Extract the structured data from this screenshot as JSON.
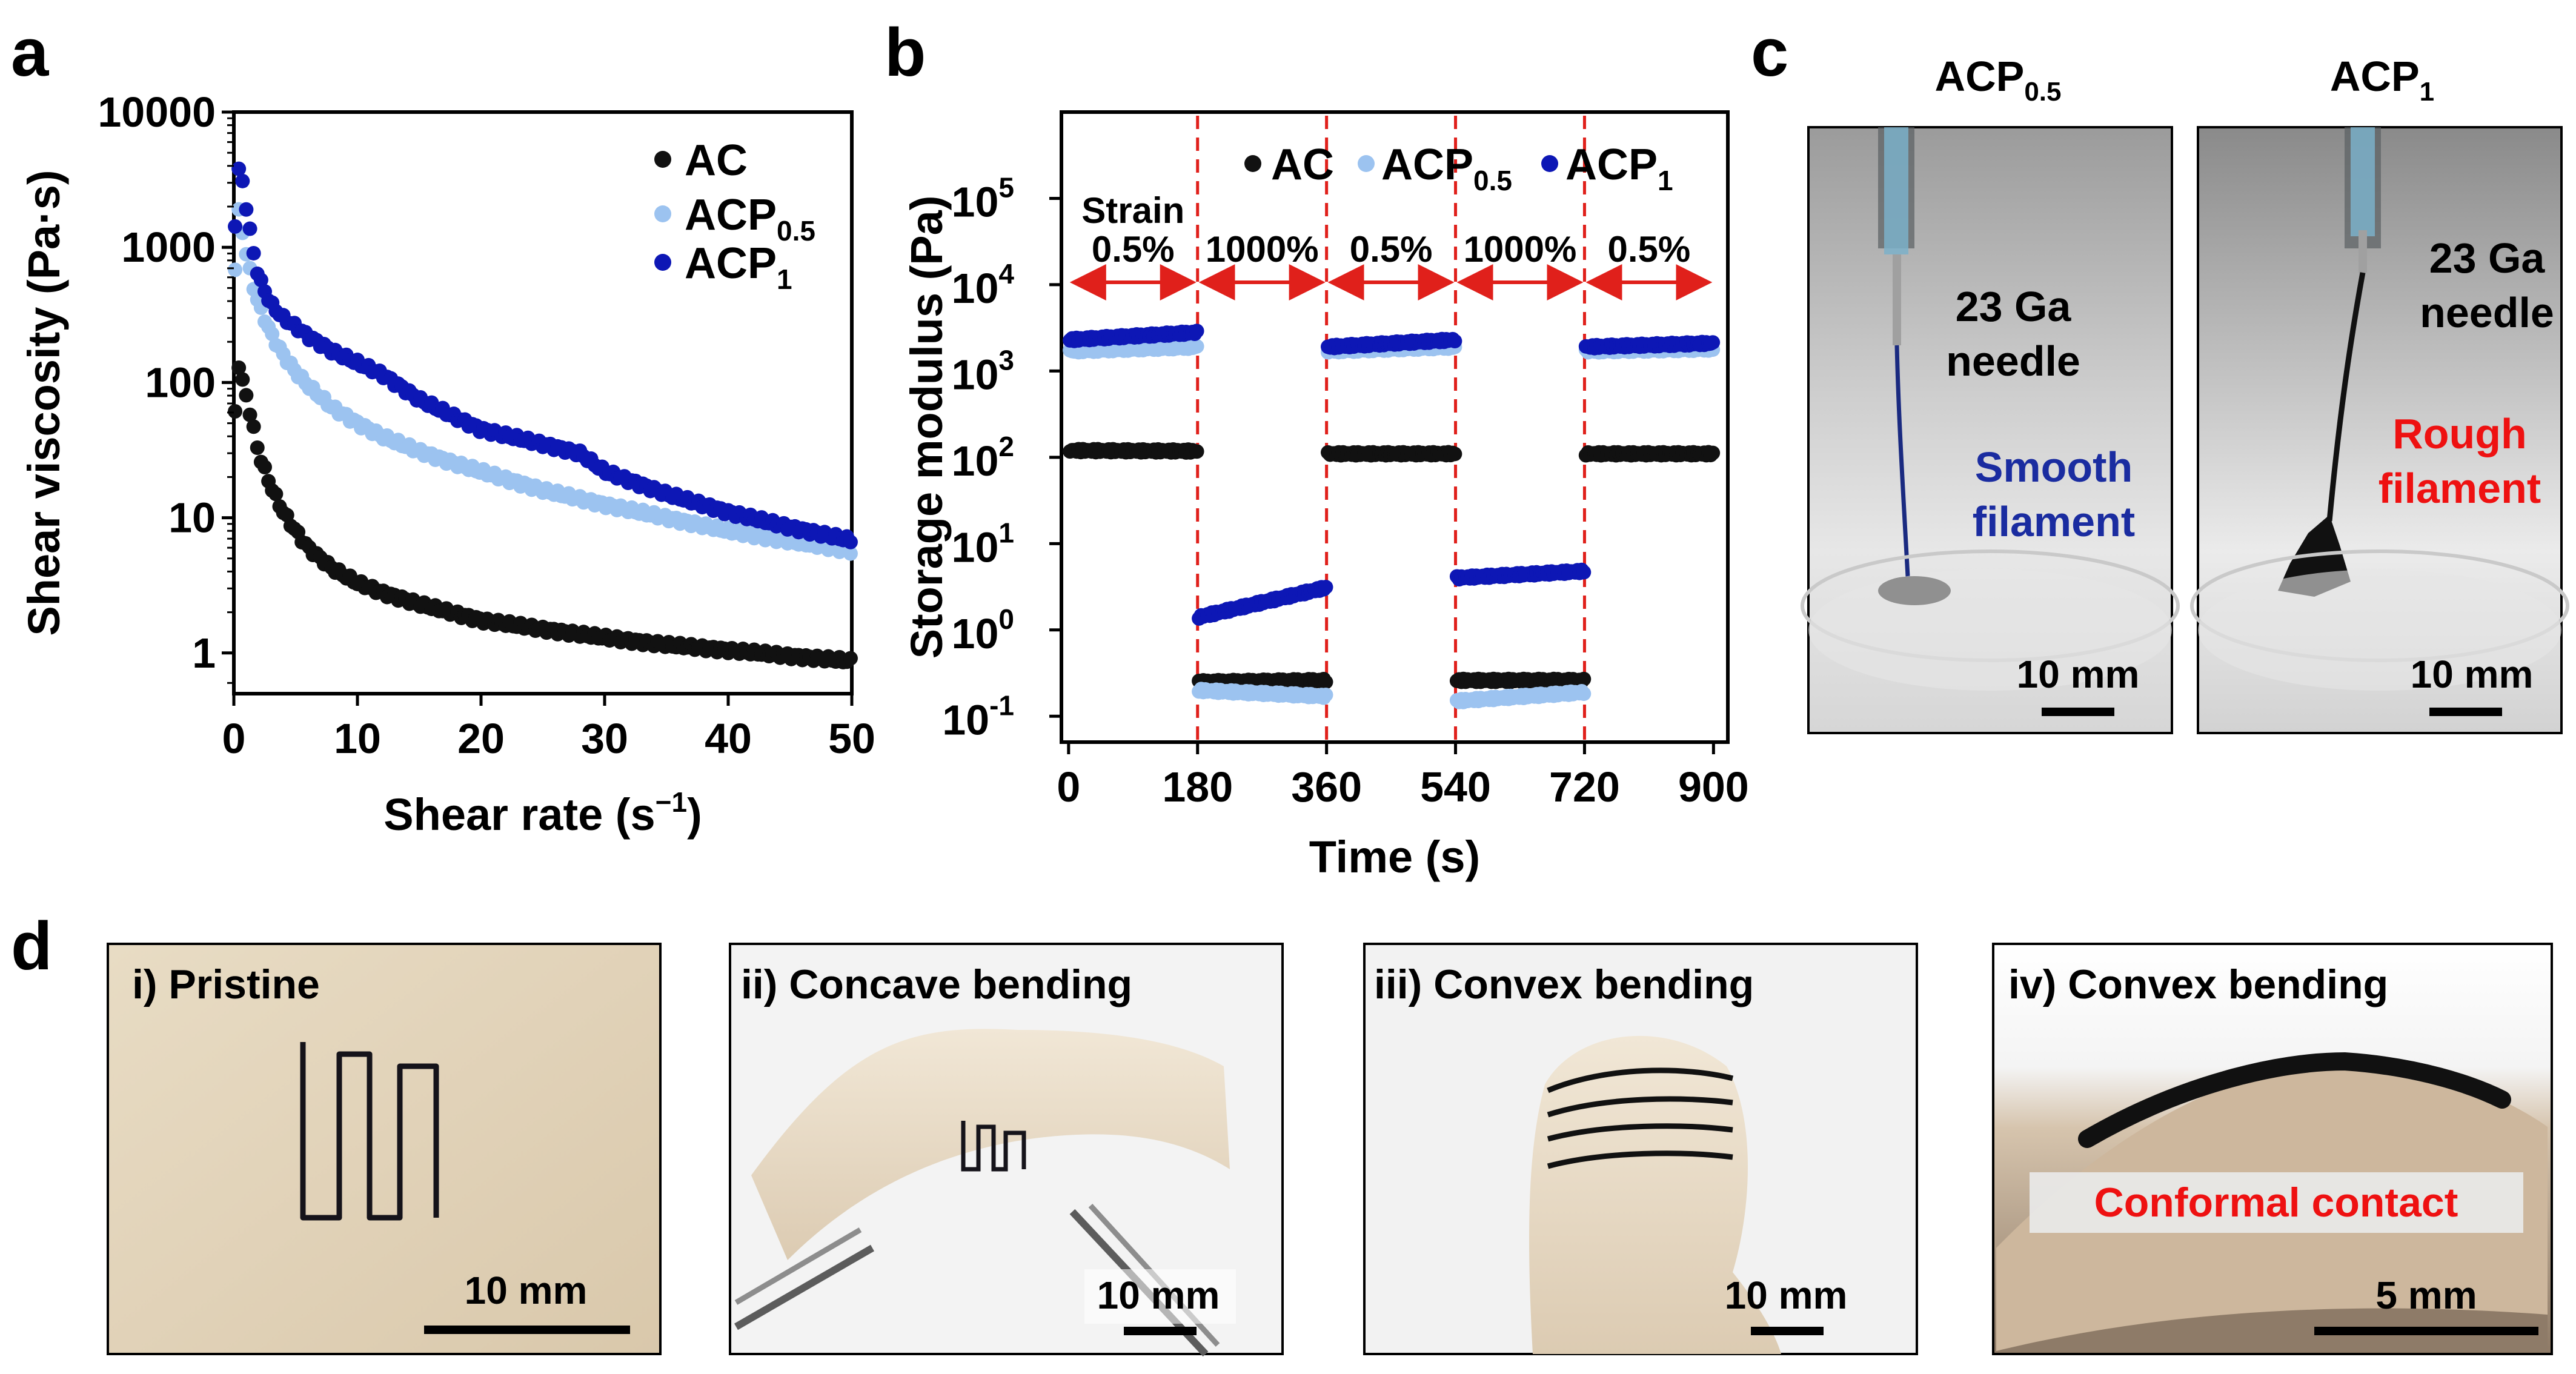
{
  "panel_labels": {
    "a": "a",
    "b": "b",
    "c": "c",
    "d": "d"
  },
  "colors": {
    "AC": "#111111",
    "ACP05": "#9cc3f0",
    "ACP1": "#0d17b5",
    "strain": "#e0201b",
    "red_text": "#ee1111",
    "blue_text": "#1a2ca0"
  },
  "chart_data": [
    {
      "id": "a",
      "type": "scatter",
      "xlabel": "Shear rate (s",
      "xlabel_sup": "−1",
      "xlabel_end": ")",
      "ylabel": "Shear viscosity (Pa·s)",
      "xlim": [
        0,
        50
      ],
      "ylim": [
        0.5,
        10000
      ],
      "yscale": "log",
      "xticks": [
        "0",
        "10",
        "20",
        "30",
        "40",
        "50"
      ],
      "yticks": [
        "1",
        "10",
        "100",
        "1000",
        "10000"
      ],
      "legend_position": "top-right",
      "legend": [
        {
          "key": "AC",
          "label": "AC",
          "sub": ""
        },
        {
          "key": "ACP05",
          "label": "ACP",
          "sub": "0.5"
        },
        {
          "key": "ACP1",
          "label": "ACP",
          "sub": "1"
        }
      ],
      "series": [
        {
          "key": "AC",
          "x": [
            0.1,
            0.3,
            0.6,
            1,
            1.5,
            2,
            3,
            4,
            5,
            6,
            8,
            10,
            12,
            15,
            18,
            20,
            25,
            30,
            35,
            40,
            45,
            50
          ],
          "y": [
            60,
            150,
            110,
            80,
            50,
            30,
            17,
            11,
            8,
            6,
            4.2,
            3.3,
            2.8,
            2.3,
            1.95,
            1.75,
            1.5,
            1.3,
            1.15,
            1.05,
            0.95,
            0.87
          ]
        },
        {
          "key": "ACP05",
          "x": [
            0.1,
            0.3,
            0.6,
            1,
            1.5,
            2,
            3,
            4,
            5,
            6,
            8,
            10,
            12,
            15,
            18,
            20,
            25,
            30,
            35,
            40,
            45,
            50
          ],
          "y": [
            700,
            2000,
            1500,
            900,
            550,
            380,
            230,
            160,
            120,
            95,
            65,
            50,
            40,
            31,
            25,
            22,
            16,
            12.5,
            10,
            8,
            6.7,
            5.7
          ]
        },
        {
          "key": "ACP1",
          "x": [
            0.1,
            0.3,
            0.6,
            1,
            1.5,
            2,
            3,
            4,
            5,
            6,
            8,
            10,
            12,
            15,
            18,
            20,
            25,
            28,
            30,
            35,
            40,
            45,
            50
          ],
          "y": [
            1500,
            3800,
            3500,
            2000,
            1000,
            600,
            380,
            300,
            260,
            220,
            170,
            140,
            115,
            75,
            55,
            45,
            35,
            30,
            22,
            15,
            11,
            8.5,
            6.8
          ]
        }
      ]
    },
    {
      "id": "b",
      "type": "scatter",
      "xlabel": "Time (s)",
      "ylabel": "Storage modulus (Pa)",
      "xlim": [
        -10,
        920
      ],
      "ylim_exp": [
        -1.3,
        6
      ],
      "yscale": "log",
      "xticks": [
        "0",
        "180",
        "360",
        "540",
        "720",
        "900"
      ],
      "xtick_values": [
        0,
        180,
        360,
        540,
        720,
        900
      ],
      "yticks": [
        {
          "base": "10",
          "exp": "-1"
        },
        {
          "base": "10",
          "exp": "0"
        },
        {
          "base": "10",
          "exp": "1"
        },
        {
          "base": "10",
          "exp": "2"
        },
        {
          "base": "10",
          "exp": "3"
        },
        {
          "base": "10",
          "exp": "4"
        },
        {
          "base": "10",
          "exp": "5"
        }
      ],
      "legend_position": "top-right",
      "legend": [
        {
          "key": "AC",
          "label": "AC",
          "sub": ""
        },
        {
          "key": "ACP05",
          "label": "ACP",
          "sub": "0.5"
        },
        {
          "key": "ACP1",
          "label": "ACP",
          "sub": "1"
        }
      ],
      "strain_title": "Strain",
      "strain_segments": [
        {
          "label": "0.5%",
          "from": 0,
          "to": 180
        },
        {
          "label": "1000%",
          "from": 180,
          "to": 360
        },
        {
          "label": "0.5%",
          "from": 360,
          "to": 540
        },
        {
          "label": "1000%",
          "from": 540,
          "to": 720
        },
        {
          "label": "0.5%",
          "from": 720,
          "to": 900
        }
      ],
      "dividers": [
        180,
        360,
        540,
        720
      ],
      "series": [
        {
          "key": "AC",
          "segments": [
            {
              "from": 0,
              "to": 180,
              "v_start": 120,
              "v_end": 118
            },
            {
              "from": 180,
              "to": 360,
              "v_start": 0.25,
              "v_end": 0.26
            },
            {
              "from": 360,
              "to": 540,
              "v_start": 110,
              "v_end": 110
            },
            {
              "from": 540,
              "to": 720,
              "v_start": 0.26,
              "v_end": 0.26
            },
            {
              "from": 720,
              "to": 900,
              "v_start": 110,
              "v_end": 110
            }
          ]
        },
        {
          "key": "ACP05",
          "segments": [
            {
              "from": 0,
              "to": 180,
              "v_start": 1700,
              "v_end": 1900
            },
            {
              "from": 180,
              "to": 360,
              "v_start": 0.2,
              "v_end": 0.17
            },
            {
              "from": 360,
              "to": 540,
              "v_start": 1700,
              "v_end": 1900
            },
            {
              "from": 540,
              "to": 720,
              "v_start": 0.15,
              "v_end": 0.19
            },
            {
              "from": 720,
              "to": 900,
              "v_start": 1700,
              "v_end": 1800
            }
          ]
        },
        {
          "key": "ACP1",
          "segments": [
            {
              "from": 0,
              "to": 180,
              "v_start": 2300,
              "v_end": 2800
            },
            {
              "from": 180,
              "to": 360,
              "v_start": 1.4,
              "v_end": 3.1
            },
            {
              "from": 360,
              "to": 540,
              "v_start": 1900,
              "v_end": 2300
            },
            {
              "from": 540,
              "to": 720,
              "v_start": 4.0,
              "v_end": 4.8
            },
            {
              "from": 720,
              "to": 900,
              "v_start": 1900,
              "v_end": 2100
            }
          ]
        }
      ]
    }
  ],
  "panel_c": {
    "left": {
      "title": "ACP",
      "title_sub": "0.5",
      "needle_1": "23 Ga",
      "needle_2": "needle",
      "note_1": "Smooth",
      "note_2": "filament",
      "scale": "10 mm"
    },
    "right": {
      "title": "ACP",
      "title_sub": "1",
      "needle_1": "23 Ga",
      "needle_2": "needle",
      "note_1": "Rough",
      "note_2": "filament",
      "scale": "10 mm"
    }
  },
  "panel_d": [
    {
      "label": "i) Pristine",
      "scale": "10 mm"
    },
    {
      "label": "ii) Concave bending",
      "scale": "10 mm"
    },
    {
      "label": "iii) Convex bending",
      "scale": "10 mm"
    },
    {
      "label": "iv) Convex bending",
      "scale": "5 mm",
      "banner": "Conformal contact"
    }
  ]
}
